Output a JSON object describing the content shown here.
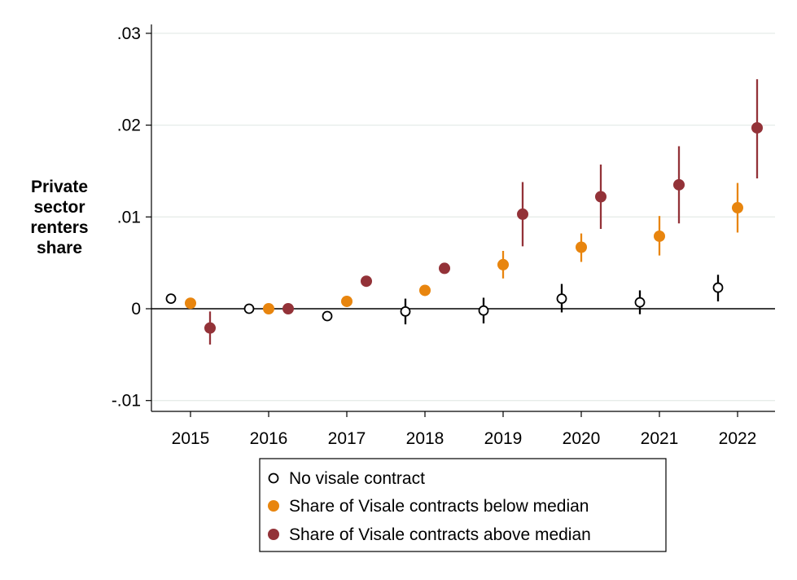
{
  "chart_data": {
    "type": "scatter",
    "subtype": "coefficient plot with confidence intervals",
    "ylabel_lines": [
      "Private",
      "sector",
      "renters",
      "share"
    ],
    "categories": [
      "2015",
      "2016",
      "2017",
      "2018",
      "2019",
      "2020",
      "2021",
      "2022"
    ],
    "ylim": [
      -0.011,
      0.0305
    ],
    "yticks": [
      {
        "value": 0.03,
        "label": ".03"
      },
      {
        "value": 0.02,
        "label": ".02"
      },
      {
        "value": 0.01,
        "label": ".01"
      },
      {
        "value": 0,
        "label": "0"
      },
      {
        "value": -0.01,
        "label": "-.01"
      }
    ],
    "grid": true,
    "reference_line": 0,
    "legend_position": "bottom",
    "series": [
      {
        "name": "No visale contract",
        "marker": "hollow-circle",
        "color": "#000000",
        "values": [
          0.0011,
          0.0,
          -0.0008,
          -0.0003,
          -0.0002,
          0.0011,
          0.0007,
          0.0023
        ],
        "ci_low": [
          null,
          null,
          null,
          -0.0017,
          -0.0016,
          -0.0004,
          -0.0006,
          0.0008
        ],
        "ci_high": [
          null,
          null,
          null,
          0.0011,
          0.0012,
          0.0027,
          0.002,
          0.0037
        ]
      },
      {
        "name": "Share of Visale contracts below median",
        "marker": "filled-circle",
        "color": "#e8850e",
        "values": [
          0.0006,
          0.0,
          0.0008,
          0.002,
          0.0048,
          0.0067,
          0.0079,
          0.011
        ],
        "ci_low": [
          null,
          null,
          null,
          null,
          0.0033,
          0.0051,
          0.0058,
          0.0083
        ],
        "ci_high": [
          null,
          null,
          null,
          null,
          0.0063,
          0.0082,
          0.0101,
          0.0137
        ]
      },
      {
        "name": "Share of Visale contracts above median",
        "marker": "filled-circle",
        "color": "#933238",
        "values": [
          -0.0021,
          0.0,
          0.003,
          0.0044,
          0.0103,
          0.0122,
          0.0135,
          0.0197
        ],
        "ci_low": [
          -0.0039,
          null,
          null,
          null,
          0.0068,
          0.0087,
          0.0093,
          0.0142
        ],
        "ci_high": [
          -0.0003,
          null,
          null,
          null,
          0.0138,
          0.0157,
          0.0177,
          0.025
        ]
      }
    ]
  }
}
